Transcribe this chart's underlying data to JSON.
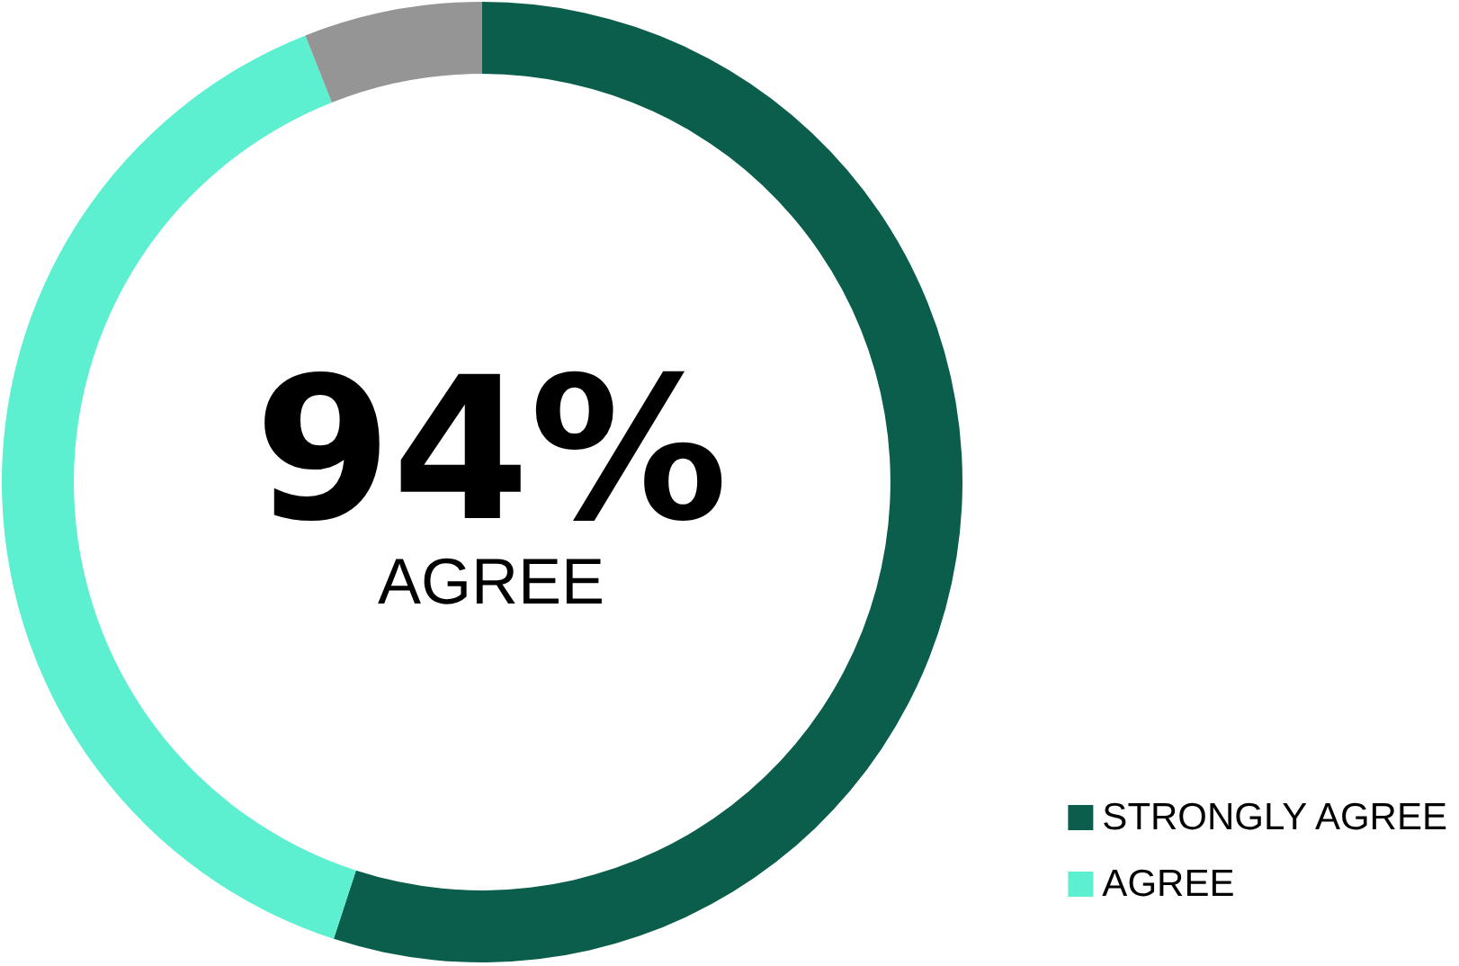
{
  "chart_data": {
    "type": "donut",
    "title": "94%",
    "subtitle": "AGREE",
    "categories": [
      "STRONGLY AGREE",
      "AGREE",
      null
    ],
    "values": [
      55,
      39,
      6
    ],
    "colors": [
      "#0b5e4c",
      "#5cefd0",
      "#959595"
    ],
    "legend": "bottom right"
  }
}
